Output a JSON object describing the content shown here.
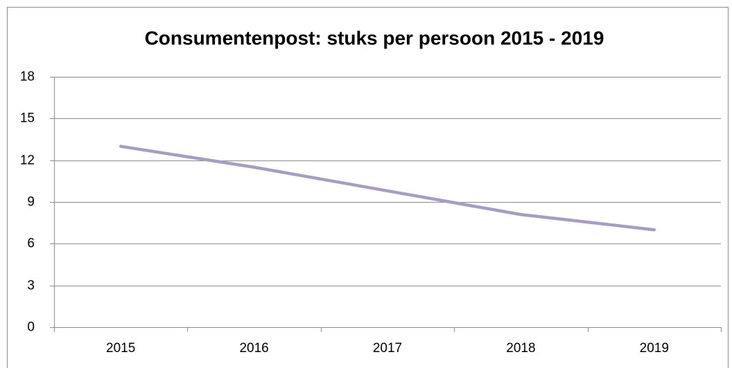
{
  "chart_data": {
    "type": "line",
    "title": "Consumentenpost: stuks per persoon 2015 - 2019",
    "categories": [
      "2015",
      "2016",
      "2017",
      "2018",
      "2019"
    ],
    "series": [
      {
        "color": "#a99cc4",
        "values": [
          13,
          11.5,
          9.8,
          8.1,
          7.0
        ]
      }
    ],
    "ylim": [
      0,
      18
    ],
    "yticks": [
      0,
      3,
      6,
      9,
      12,
      15,
      18
    ],
    "grid": true
  }
}
